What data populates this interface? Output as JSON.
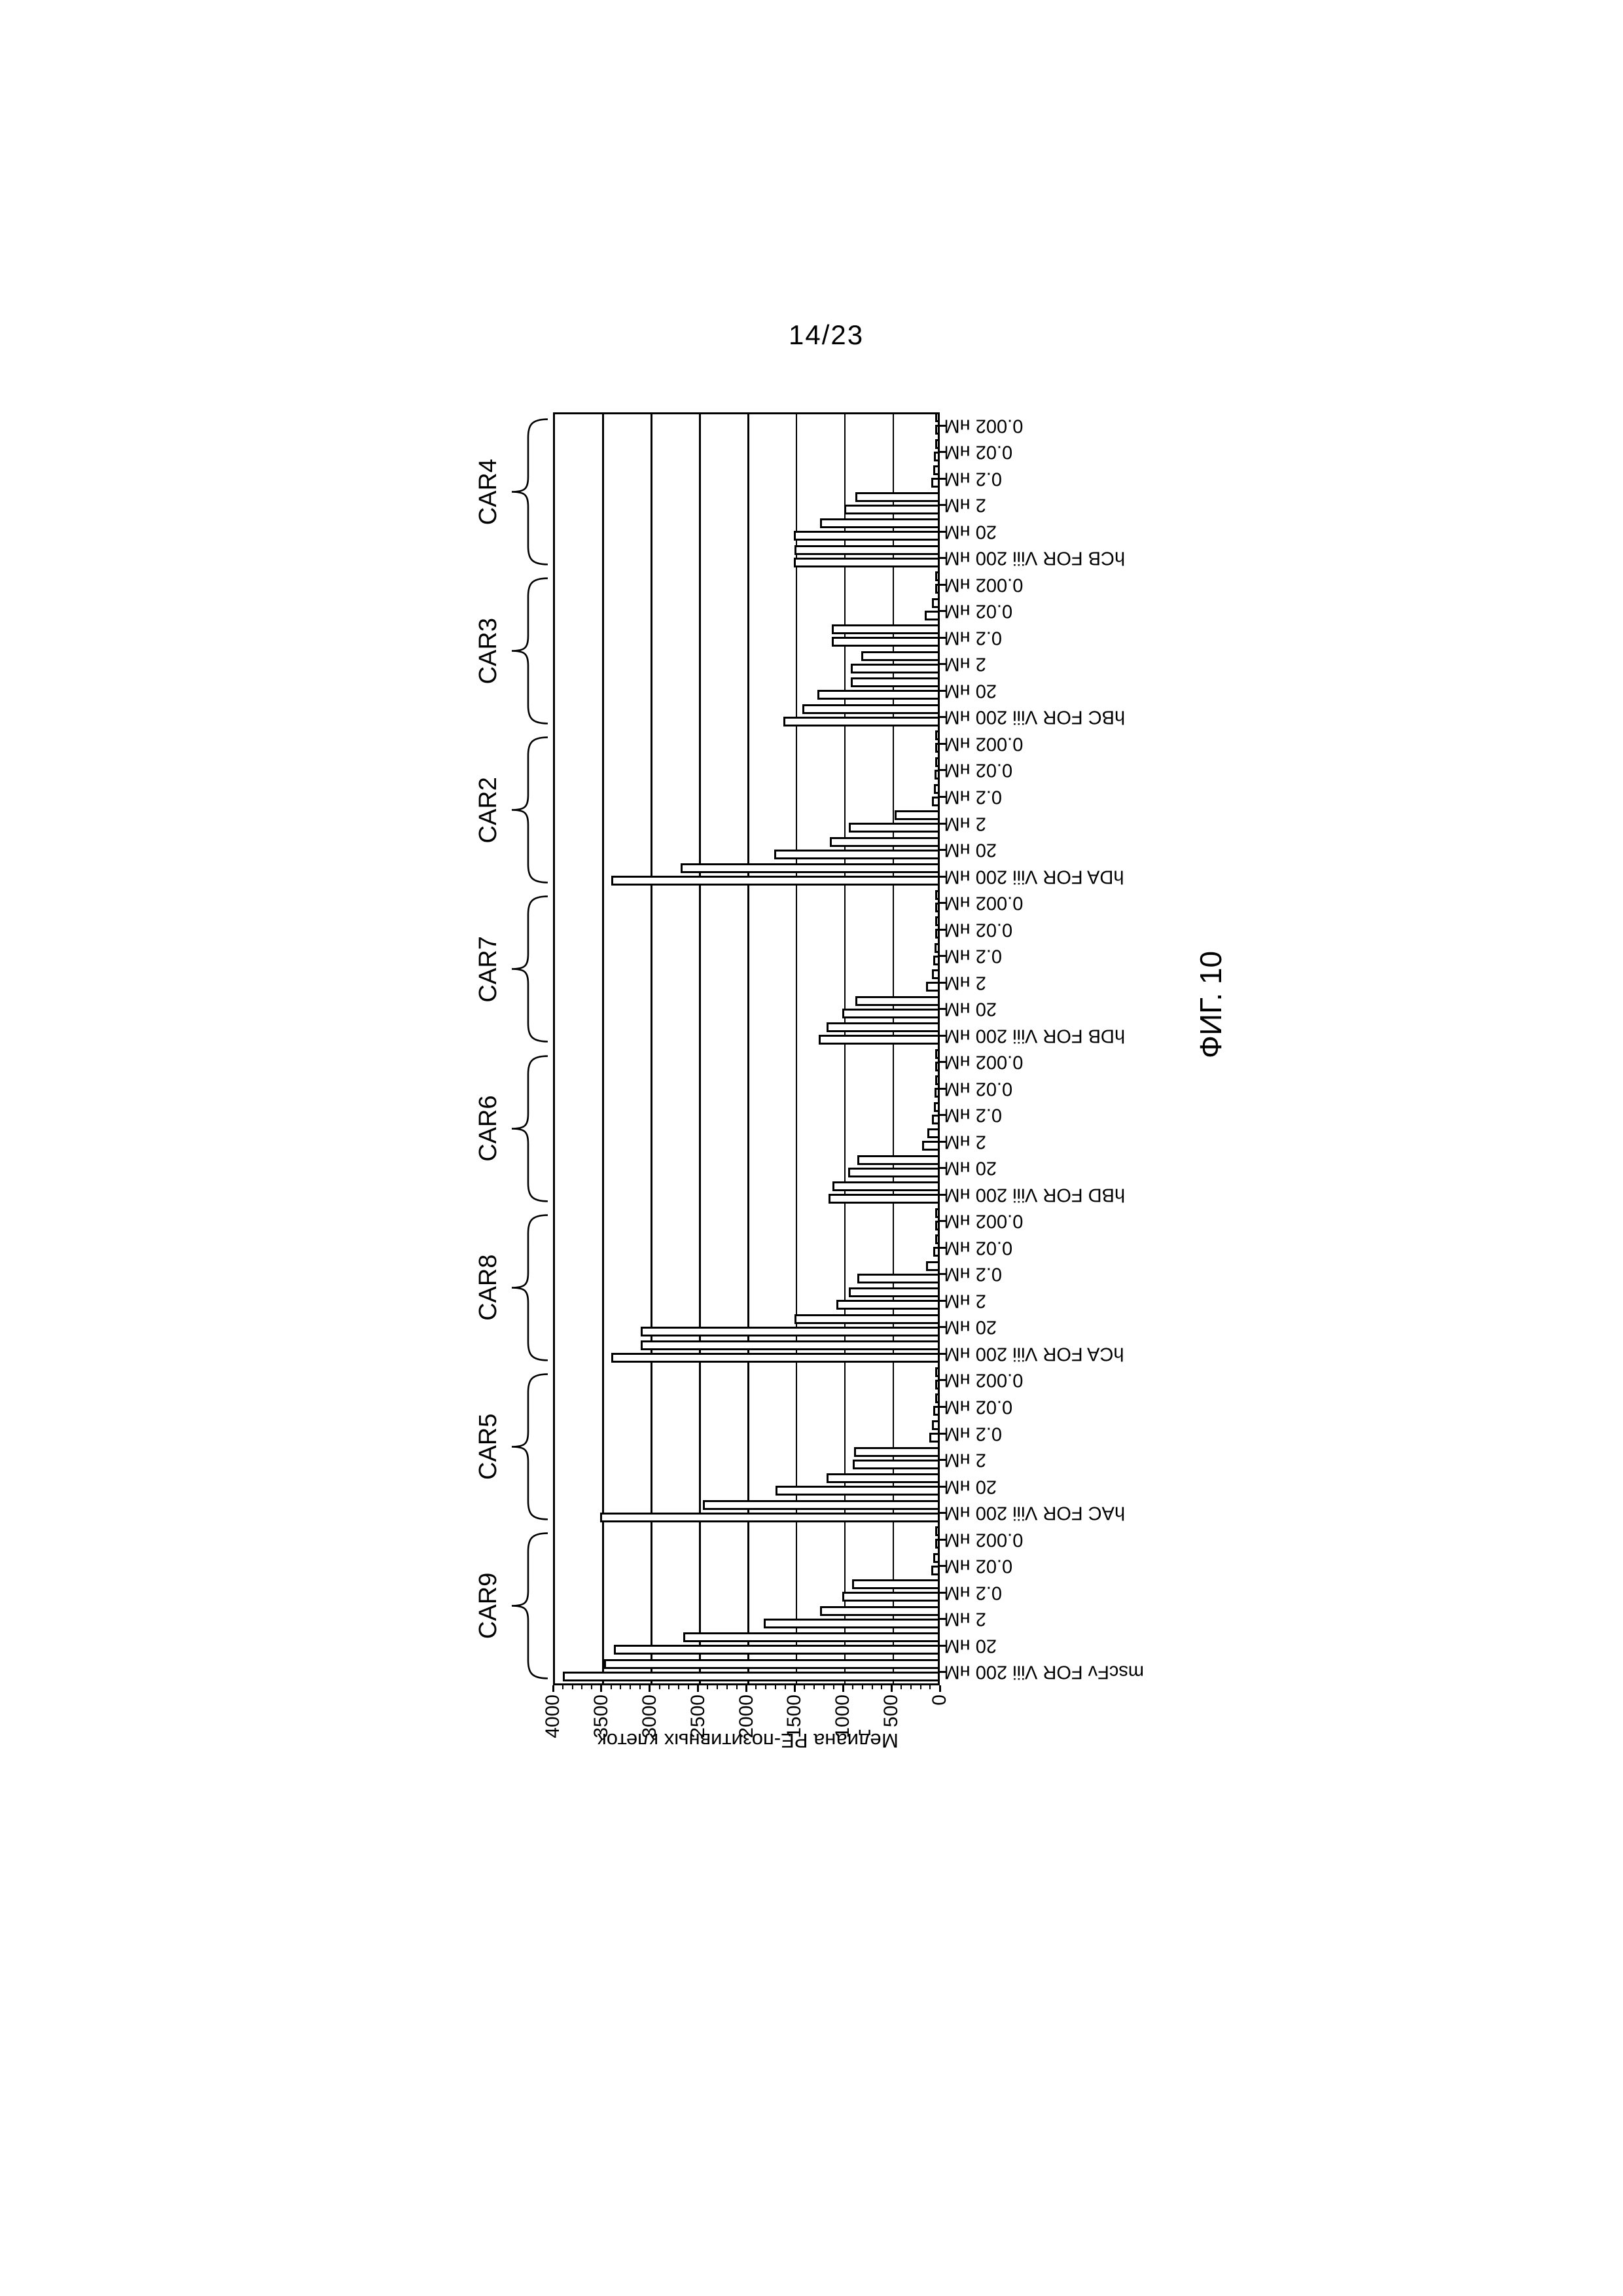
{
  "page": {
    "number": "14/23",
    "caption": "ФИГ. 10"
  },
  "chart_data": {
    "type": "bar",
    "layout_note": "entire chart rotated 90deg counter-clockwise on page; bars per category are duplicate pairs, white fill black outline",
    "title": "",
    "value_axis": {
      "label": "Медиана PE-позитивных клеток",
      "min": 0,
      "max": 4000,
      "tick_step": 500,
      "ticks": [
        0,
        500,
        1000,
        1500,
        2000,
        2500,
        3000,
        3500,
        4000
      ],
      "grid": true
    },
    "category_axis": {
      "note": "order listed = left-to-right in unrotated chart = bottom-to-top on rotated page"
    },
    "groups": [
      {
        "name": "CAR9",
        "categories": [
          {
            "label": "mscFv FOR Viii 200 нМ",
            "values": [
              3880,
              3450
            ]
          },
          {
            "label": "20 нМ",
            "values": [
              3350,
              2630
            ]
          },
          {
            "label": "2 нМ",
            "values": [
              1800,
              1220
            ]
          },
          {
            "label": "0.2 нМ",
            "values": [
              990,
              890
            ]
          },
          {
            "label": "0.02 нМ",
            "values": [
              70,
              45
            ]
          },
          {
            "label": "0.002 нМ",
            "values": [
              30,
              20
            ]
          }
        ]
      },
      {
        "name": "CAR5",
        "categories": [
          {
            "label": "hAC FOR Viii 200 нМ",
            "values": [
              3490,
              2430
            ]
          },
          {
            "label": "20 нМ",
            "values": [
              1680,
              1150
            ]
          },
          {
            "label": "2 нМ",
            "values": [
              880,
              870
            ]
          },
          {
            "label": "0.2 нМ",
            "values": [
              90,
              60
            ]
          },
          {
            "label": "0.02 нМ",
            "values": [
              45,
              30
            ]
          },
          {
            "label": "0.002 нМ",
            "values": [
              25,
              15
            ]
          }
        ]
      },
      {
        "name": "CAR8",
        "categories": [
          {
            "label": "hCA FOR Viii 200 нМ",
            "values": [
              3380,
              3070
            ]
          },
          {
            "label": "20 нМ",
            "values": [
              3070,
              1480
            ]
          },
          {
            "label": "2 нМ",
            "values": [
              1050,
              920
            ]
          },
          {
            "label": "0.2 нМ",
            "values": [
              830,
              120
            ]
          },
          {
            "label": "0.02 нМ",
            "values": [
              50,
              30
            ]
          },
          {
            "label": "0.002 нМ",
            "values": [
              25,
              15
            ]
          }
        ]
      },
      {
        "name": "CAR6",
        "categories": [
          {
            "label": "hBD FOR Viii 200 нМ",
            "values": [
              1130,
              1090
            ]
          },
          {
            "label": "20 нМ",
            "values": [
              925,
              835
            ]
          },
          {
            "label": "2 нМ",
            "values": [
              160,
              110
            ]
          },
          {
            "label": "0.2 нМ",
            "values": [
              60,
              40
            ]
          },
          {
            "label": "0.02 нМ",
            "values": [
              35,
              25
            ]
          },
          {
            "label": "0.002 нМ",
            "values": [
              20,
              15
            ]
          }
        ]
      },
      {
        "name": "CAR7",
        "categories": [
          {
            "label": "hDB FOR Viii 200 нМ",
            "values": [
              1230,
              1150
            ]
          },
          {
            "label": "20 нМ",
            "values": [
              990,
              850
            ]
          },
          {
            "label": "2 нМ",
            "values": [
              120,
              60
            ]
          },
          {
            "label": "0.2 нМ",
            "values": [
              50,
              35
            ]
          },
          {
            "label": "0.02 нМ",
            "values": [
              30,
              20
            ]
          },
          {
            "label": "0.002 нМ",
            "values": [
              20,
              15
            ]
          }
        ]
      },
      {
        "name": "CAR2",
        "categories": [
          {
            "label": "hDA FOR Viii 200 нМ",
            "values": [
              3380,
              2660
            ]
          },
          {
            "label": "20 нМ",
            "values": [
              1690,
              1120
            ]
          },
          {
            "label": "2 нМ",
            "values": [
              920,
              450
            ]
          },
          {
            "label": "0.2 нМ",
            "values": [
              60,
              40
            ]
          },
          {
            "label": "0.02 нМ",
            "values": [
              35,
              25
            ]
          },
          {
            "label": "0.002 нМ",
            "values": [
              20,
              15
            ]
          }
        ]
      },
      {
        "name": "CAR3",
        "categories": [
          {
            "label": "hBC FOR Viii 200 нМ",
            "values": [
              1600,
              1400
            ]
          },
          {
            "label": "20 нМ",
            "values": [
              1245,
              900
            ]
          },
          {
            "label": "2 нМ",
            "values": [
              900,
              790
            ]
          },
          {
            "label": "0.2 нМ",
            "values": [
              1100,
              1100
            ]
          },
          {
            "label": "0.02 нМ",
            "values": [
              135,
              60
            ]
          },
          {
            "label": "0.002 нМ",
            "values": [
              30,
              20
            ]
          }
        ]
      },
      {
        "name": "CAR4",
        "categories": [
          {
            "label": "hCB FOR Viii 200 нМ",
            "values": [
              1490,
              1480
            ]
          },
          {
            "label": "20 нМ",
            "values": [
              1490,
              1220
            ]
          },
          {
            "label": "2 нМ",
            "values": [
              970,
              850
            ]
          },
          {
            "label": "0.2 нМ",
            "values": [
              70,
              45
            ]
          },
          {
            "label": "0.02 нМ",
            "values": [
              40,
              25
            ]
          },
          {
            "label": "0.002 нМ",
            "values": [
              25,
              15
            ]
          }
        ]
      }
    ]
  }
}
